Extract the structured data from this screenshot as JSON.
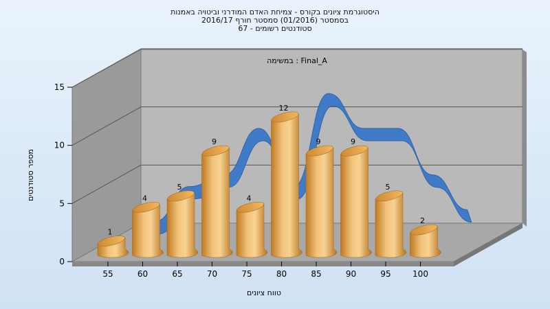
{
  "chart_data": {
    "type": "bar",
    "title_lines": [
      "היסטוגרמת ציונים בקורס - צמיחת האדם המודרני וביטויה באמנות",
      "בסמסטר  (01/2016)  סמסטר חורף 2016/17",
      "סטודנטים רשומים - 67"
    ],
    "subtitle": "במשימה : Final_A",
    "xlabel": "טווח ציונים",
    "ylabel": "מספר סטודנטים",
    "categories": [
      "55",
      "60",
      "65",
      "70",
      "75",
      "80",
      "85",
      "90",
      "95",
      "100"
    ],
    "values": [
      1,
      4,
      5,
      9,
      4,
      12,
      9,
      9,
      5,
      2
    ],
    "trend_values": [
      1,
      4,
      5,
      9,
      4,
      12,
      9,
      9,
      5,
      2
    ],
    "yticks": [
      0,
      5,
      10,
      15
    ],
    "ylim": [
      0,
      15
    ],
    "grid": true,
    "legend": "none",
    "colors": {
      "bar": "#e8a54a",
      "trend": "#3a78c8",
      "wall_back": "#b9b9b9",
      "wall_side": "#9a9a9a",
      "floor": "#a8a8a8"
    }
  }
}
